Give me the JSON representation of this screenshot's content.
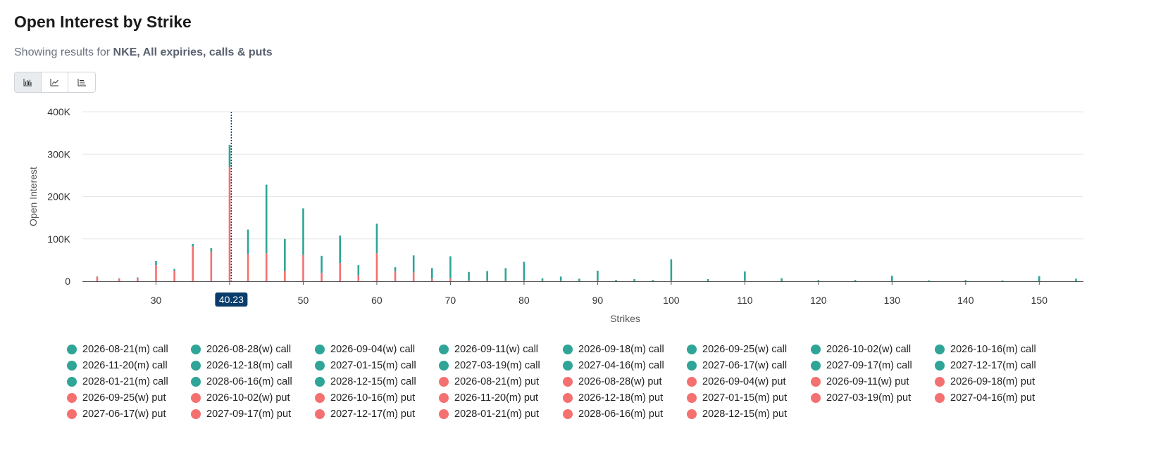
{
  "header": {
    "title": "Open Interest by Strike",
    "subtitle_prefix": "Showing results for",
    "subtitle_bold": "NKE, All expiries, calls & puts"
  },
  "toolbar": {
    "buttons": [
      {
        "icon": "bar-chart-icon",
        "active": true
      },
      {
        "icon": "line-chart-icon",
        "active": false
      },
      {
        "icon": "scatter-chart-icon",
        "active": false
      }
    ]
  },
  "colors": {
    "call": "#2ea597",
    "put": "#f57070",
    "marker": "#0a3d6b",
    "grid": "#e6e6e6"
  },
  "chart_data": {
    "type": "bar",
    "stacked": true,
    "xlabel": "Strikes",
    "ylabel": "Open Interest",
    "xlim": [
      20,
      156
    ],
    "ylim": [
      0,
      400000
    ],
    "x_ticks": [
      30,
      40,
      50,
      60,
      70,
      80,
      90,
      100,
      110,
      120,
      130,
      140,
      150
    ],
    "y_ticks": [
      {
        "value": 0,
        "label": "0"
      },
      {
        "value": 100000,
        "label": "100K"
      },
      {
        "value": 200000,
        "label": "200K"
      },
      {
        "value": 300000,
        "label": "300K"
      },
      {
        "value": 400000,
        "label": "400K"
      }
    ],
    "current_price": 40.23,
    "current_price_label": "40.23",
    "legend_position": "bottom",
    "grid": true,
    "strikes": [
      22,
      25,
      27.5,
      30,
      32.5,
      35,
      37.5,
      40,
      42.5,
      45,
      47.5,
      50,
      52.5,
      55,
      57.5,
      60,
      62.5,
      65,
      67.5,
      70,
      72.5,
      75,
      77.5,
      80,
      82.5,
      85,
      87.5,
      90,
      92.5,
      95,
      97.5,
      100,
      105,
      110,
      115,
      120,
      125,
      130,
      135,
      140,
      145,
      150,
      155
    ],
    "series": [
      {
        "kind": "call",
        "values": [
          1000,
          1000,
          2000,
          10000,
          4000,
          6000,
          8000,
          52000,
          58000,
          162000,
          76000,
          110000,
          40000,
          65000,
          24000,
          70000,
          10000,
          40000,
          25000,
          52000,
          20000,
          23000,
          30000,
          44000,
          6000,
          10000,
          6000,
          24000,
          3000,
          5000,
          3000,
          51000,
          5000,
          22000,
          7000,
          3000,
          3000,
          13000,
          2000,
          3000,
          2000,
          12000,
          6000
        ]
      },
      {
        "kind": "put",
        "values": [
          10000,
          6000,
          7000,
          38000,
          25000,
          82000,
          70000,
          270000,
          64000,
          66000,
          24000,
          62000,
          20000,
          43000,
          14000,
          66000,
          23000,
          21000,
          6000,
          7000,
          2000,
          1000,
          1000,
          2000,
          1000,
          1000,
          0,
          1000,
          0,
          0,
          0,
          1000,
          0,
          1000,
          0,
          0,
          0,
          0,
          0,
          0,
          0,
          0,
          0
        ]
      }
    ],
    "legend": [
      {
        "label": "2026-08-21(m) call",
        "kind": "call"
      },
      {
        "label": "2026-08-28(w) call",
        "kind": "call"
      },
      {
        "label": "2026-09-04(w) call",
        "kind": "call"
      },
      {
        "label": "2026-09-11(w) call",
        "kind": "call"
      },
      {
        "label": "2026-09-18(m) call",
        "kind": "call"
      },
      {
        "label": "2026-09-25(w) call",
        "kind": "call"
      },
      {
        "label": "2026-10-02(w) call",
        "kind": "call"
      },
      {
        "label": "2026-10-16(m) call",
        "kind": "call"
      },
      {
        "label": "2026-11-20(m) call",
        "kind": "call"
      },
      {
        "label": "2026-12-18(m) call",
        "kind": "call"
      },
      {
        "label": "2027-01-15(m) call",
        "kind": "call"
      },
      {
        "label": "2027-03-19(m) call",
        "kind": "call"
      },
      {
        "label": "2027-04-16(m) call",
        "kind": "call"
      },
      {
        "label": "2027-06-17(w) call",
        "kind": "call"
      },
      {
        "label": "2027-09-17(m) call",
        "kind": "call"
      },
      {
        "label": "2027-12-17(m) call",
        "kind": "call"
      },
      {
        "label": "2028-01-21(m) call",
        "kind": "call"
      },
      {
        "label": "2028-06-16(m) call",
        "kind": "call"
      },
      {
        "label": "2028-12-15(m) call",
        "kind": "call"
      },
      {
        "label": "2026-08-21(m) put",
        "kind": "put"
      },
      {
        "label": "2026-08-28(w) put",
        "kind": "put"
      },
      {
        "label": "2026-09-04(w) put",
        "kind": "put"
      },
      {
        "label": "2026-09-11(w) put",
        "kind": "put"
      },
      {
        "label": "2026-09-18(m) put",
        "kind": "put"
      },
      {
        "label": "2026-09-25(w) put",
        "kind": "put"
      },
      {
        "label": "2026-10-02(w) put",
        "kind": "put"
      },
      {
        "label": "2026-10-16(m) put",
        "kind": "put"
      },
      {
        "label": "2026-11-20(m) put",
        "kind": "put"
      },
      {
        "label": "2026-12-18(m) put",
        "kind": "put"
      },
      {
        "label": "2027-01-15(m) put",
        "kind": "put"
      },
      {
        "label": "2027-03-19(m) put",
        "kind": "put"
      },
      {
        "label": "2027-04-16(m) put",
        "kind": "put"
      },
      {
        "label": "2027-06-17(w) put",
        "kind": "put"
      },
      {
        "label": "2027-09-17(m) put",
        "kind": "put"
      },
      {
        "label": "2027-12-17(m) put",
        "kind": "put"
      },
      {
        "label": "2028-01-21(m) put",
        "kind": "put"
      },
      {
        "label": "2028-06-16(m) put",
        "kind": "put"
      },
      {
        "label": "2028-12-15(m) put",
        "kind": "put"
      }
    ]
  }
}
